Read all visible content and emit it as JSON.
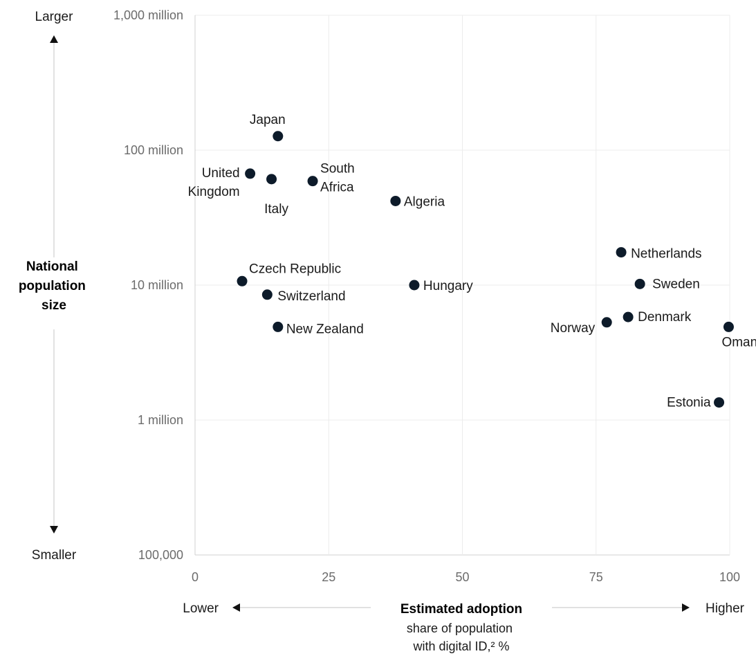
{
  "chart_data": {
    "type": "scatter",
    "x_scale": "linear",
    "y_scale": "log",
    "xlim": [
      0,
      100
    ],
    "ylim": [
      100000,
      1000000000
    ],
    "grid": true,
    "x_ticks": [
      0,
      25,
      50,
      75,
      100
    ],
    "x_tick_labels": [
      "0",
      "25",
      "50",
      "75",
      "100"
    ],
    "y_ticks": [
      100000,
      1000000,
      10000000,
      100000000,
      1000000000
    ],
    "y_tick_labels": [
      "100,000",
      "1 million",
      "10 million",
      "100 million",
      "1,000 million"
    ],
    "xlabel": "Estimated adoption",
    "xlabel_sub": [
      "share of population",
      "with digital ID,² %"
    ],
    "x_low_label": "Lower",
    "x_high_label": "Higher",
    "ylabel": [
      "National",
      "population",
      "size"
    ],
    "y_high_label": "Larger",
    "y_low_label": "Smaller",
    "point_color": "#0d1b2a",
    "points": [
      {
        "label": [
          "Japan"
        ],
        "x": 15.5,
        "y": 127000000
      },
      {
        "label": [
          "United",
          "Kingdom"
        ],
        "x": 10.3,
        "y": 67000000
      },
      {
        "label": [
          "Italy"
        ],
        "x": 14.3,
        "y": 61000000
      },
      {
        "label": [
          "South",
          "Africa"
        ],
        "x": 22,
        "y": 59000000
      },
      {
        "label": [
          "Algeria"
        ],
        "x": 37.5,
        "y": 42000000
      },
      {
        "label": [
          "Czech Republic"
        ],
        "x": 8.8,
        "y": 10700000
      },
      {
        "label": [
          "Switzerland"
        ],
        "x": 13.5,
        "y": 8500000
      },
      {
        "label": [
          "New Zealand"
        ],
        "x": 15.5,
        "y": 4900000
      },
      {
        "label": [
          "Hungary"
        ],
        "x": 41,
        "y": 10000000
      },
      {
        "label": [
          "Netherlands"
        ],
        "x": 79.7,
        "y": 17500000
      },
      {
        "label": [
          "Sweden"
        ],
        "x": 83.2,
        "y": 10200000
      },
      {
        "label": [
          "Denmark"
        ],
        "x": 81,
        "y": 5800000
      },
      {
        "label": [
          "Norway"
        ],
        "x": 77,
        "y": 5300000
      },
      {
        "label": [
          "Oman"
        ],
        "x": 99.8,
        "y": 4900000
      },
      {
        "label": [
          "Estonia"
        ],
        "x": 98,
        "y": 1350000
      }
    ]
  }
}
